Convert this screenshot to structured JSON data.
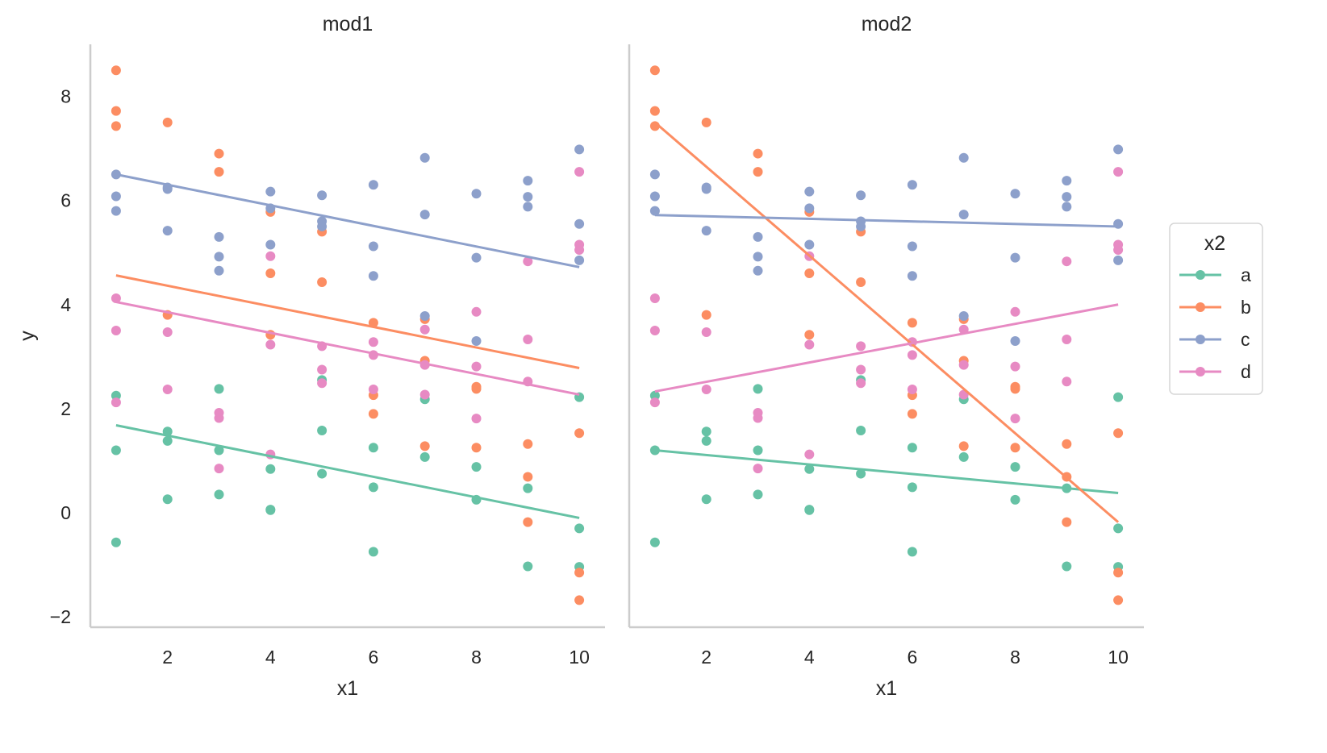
{
  "chart_data": {
    "type": "scatter",
    "grid": false,
    "legend": {
      "title": "x2",
      "placement": "right",
      "entries": [
        "a",
        "b",
        "c",
        "d"
      ]
    },
    "colors": {
      "a": "#66c2a5",
      "b": "#fc8d62",
      "c": "#8da0cb",
      "d": "#e78ac3"
    },
    "xlim": [
      0.5,
      10.5
    ],
    "ylim": [
      -2.2,
      9.0
    ],
    "x_ticks": [
      2,
      4,
      6,
      8,
      10
    ],
    "y_ticks": [
      -2,
      0,
      2,
      4,
      6,
      8
    ],
    "y_tick_labels": [
      "−2",
      "0",
      "2",
      "4",
      "6",
      "8"
    ],
    "ylabel": "y",
    "panels": [
      {
        "title": "mod1",
        "xlabel": "x1",
        "fits": [
          {
            "group": "a",
            "x": [
              1,
              10
            ],
            "y": [
              1.68,
              -0.1
            ]
          },
          {
            "group": "b",
            "x": [
              1,
              10
            ],
            "y": [
              4.56,
              2.78
            ]
          },
          {
            "group": "c",
            "x": [
              1,
              10
            ],
            "y": [
              6.5,
              4.72
            ]
          },
          {
            "group": "d",
            "x": [
              1,
              10
            ],
            "y": [
              4.05,
              2.27
            ]
          }
        ]
      },
      {
        "title": "mod2",
        "xlabel": "x1",
        "fits": [
          {
            "group": "a",
            "x": [
              1,
              10
            ],
            "y": [
              1.2,
              0.38
            ]
          },
          {
            "group": "b",
            "x": [
              1,
              10
            ],
            "y": [
              7.5,
              -0.18
            ]
          },
          {
            "group": "c",
            "x": [
              1,
              10
            ],
            "y": [
              5.72,
              5.5
            ]
          },
          {
            "group": "d",
            "x": [
              1,
              10
            ],
            "y": [
              2.33,
              4.0
            ]
          }
        ]
      }
    ],
    "series": [
      {
        "name": "a",
        "points": [
          [
            1,
            2.25
          ],
          [
            1,
            1.2
          ],
          [
            1,
            -0.57
          ],
          [
            2,
            1.56
          ],
          [
            2,
            1.38
          ],
          [
            2,
            0.26
          ],
          [
            3,
            2.38
          ],
          [
            3,
            1.2
          ],
          [
            3,
            0.35
          ],
          [
            4,
            0.84
          ],
          [
            4,
            0.06
          ],
          [
            4,
            0.05
          ],
          [
            5,
            2.55
          ],
          [
            5,
            1.58
          ],
          [
            5,
            0.75
          ],
          [
            6,
            1.25
          ],
          [
            6,
            0.49
          ],
          [
            6,
            -0.75
          ],
          [
            7,
            2.18
          ],
          [
            7,
            1.07
          ],
          [
            8,
            0.88
          ],
          [
            8,
            0.25
          ],
          [
            9,
            0.47
          ],
          [
            9,
            -1.03
          ],
          [
            10,
            2.22
          ],
          [
            10,
            -0.3
          ],
          [
            10,
            -1.04
          ]
        ]
      },
      {
        "name": "b",
        "points": [
          [
            1,
            8.5
          ],
          [
            1,
            7.72
          ],
          [
            1,
            7.43
          ],
          [
            2,
            7.5
          ],
          [
            2,
            3.8
          ],
          [
            3,
            6.9
          ],
          [
            3,
            6.55
          ],
          [
            4,
            5.78
          ],
          [
            4,
            4.6
          ],
          [
            4,
            3.42
          ],
          [
            5,
            5.4
          ],
          [
            5,
            4.43
          ],
          [
            6,
            3.65
          ],
          [
            6,
            2.26
          ],
          [
            6,
            1.9
          ],
          [
            7,
            3.72
          ],
          [
            7,
            2.92
          ],
          [
            7,
            1.28
          ],
          [
            8,
            2.42
          ],
          [
            8,
            2.38
          ],
          [
            8,
            1.25
          ],
          [
            9,
            1.32
          ],
          [
            9,
            0.69
          ],
          [
            9,
            -0.18
          ],
          [
            10,
            1.53
          ],
          [
            10,
            -1.15
          ],
          [
            10,
            -1.68
          ]
        ]
      },
      {
        "name": "c",
        "points": [
          [
            1,
            6.5
          ],
          [
            1,
            6.08
          ],
          [
            1,
            5.8
          ],
          [
            2,
            6.25
          ],
          [
            2,
            6.22
          ],
          [
            2,
            5.42
          ],
          [
            3,
            5.3
          ],
          [
            3,
            4.92
          ],
          [
            3,
            4.65
          ],
          [
            4,
            6.17
          ],
          [
            4,
            5.85
          ],
          [
            4,
            5.15
          ],
          [
            5,
            6.1
          ],
          [
            5,
            5.6
          ],
          [
            5,
            5.5
          ],
          [
            6,
            6.3
          ],
          [
            6,
            5.12
          ],
          [
            6,
            4.55
          ],
          [
            7,
            6.82
          ],
          [
            7,
            5.73
          ],
          [
            7,
            3.78
          ],
          [
            8,
            6.13
          ],
          [
            8,
            4.9
          ],
          [
            8,
            3.3
          ],
          [
            9,
            6.38
          ],
          [
            9,
            6.07
          ],
          [
            9,
            5.88
          ],
          [
            10,
            6.98
          ],
          [
            10,
            5.55
          ],
          [
            10,
            4.85
          ]
        ]
      },
      {
        "name": "d",
        "points": [
          [
            1,
            4.12
          ],
          [
            1,
            3.5
          ],
          [
            1,
            2.12
          ],
          [
            2,
            3.47
          ],
          [
            2,
            2.37
          ],
          [
            3,
            1.92
          ],
          [
            3,
            1.82
          ],
          [
            3,
            0.85
          ],
          [
            4,
            4.93
          ],
          [
            4,
            3.23
          ],
          [
            4,
            1.12
          ],
          [
            5,
            3.2
          ],
          [
            5,
            2.75
          ],
          [
            5,
            2.49
          ],
          [
            6,
            3.28
          ],
          [
            6,
            3.03
          ],
          [
            6,
            2.37
          ],
          [
            7,
            3.52
          ],
          [
            7,
            2.84
          ],
          [
            7,
            2.27
          ],
          [
            8,
            3.86
          ],
          [
            8,
            2.81
          ],
          [
            8,
            1.81
          ],
          [
            9,
            4.83
          ],
          [
            9,
            3.33
          ],
          [
            9,
            2.52
          ],
          [
            10,
            6.55
          ],
          [
            10,
            5.15
          ],
          [
            10,
            5.05
          ]
        ]
      }
    ]
  }
}
